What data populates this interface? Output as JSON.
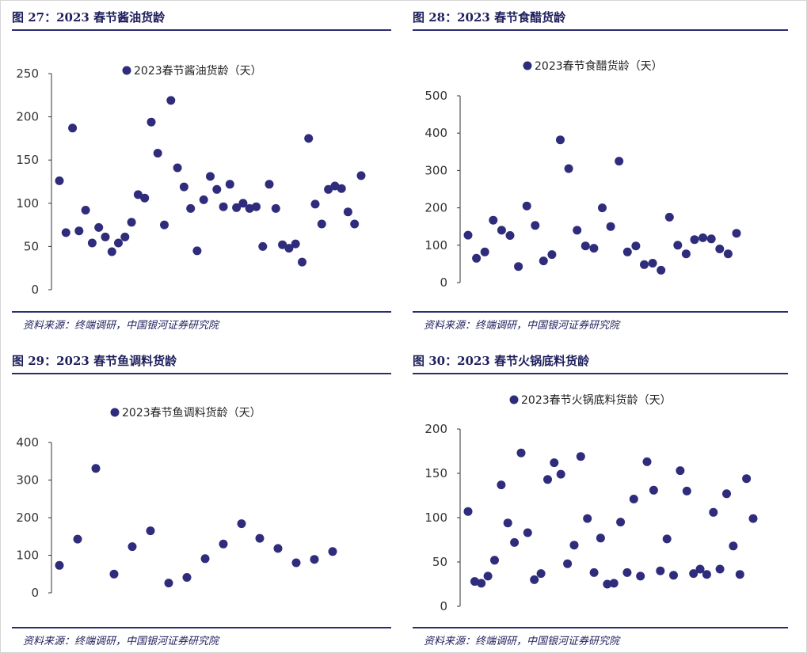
{
  "colors": {
    "marker": "#2f2c7c",
    "rule": "#2b2c71",
    "text": "#1e1f5c",
    "axis": "#333333"
  },
  "panels": [
    {
      "title": "图 27：2023 春节酱油货龄",
      "source": "资料来源：终端调研，中国银河证券研究院"
    },
    {
      "title": "图 28：2023 春节食醋货龄",
      "source": "资料来源：终端调研，中国银河证券研究院"
    },
    {
      "title": "图 29：2023 春节鱼调料货龄",
      "source": "资料来源：终端调研，中国银河证券研究院"
    },
    {
      "title": "图 30：2023 春节火锅底料货龄",
      "source": "资料来源：终端调研，中国银河证券研究院"
    }
  ],
  "chart_data": [
    {
      "type": "scatter",
      "series": [
        {
          "name": "2023春节酱油货龄（天）",
          "values": [
            126,
            66,
            187,
            68,
            92,
            54,
            72,
            61,
            44,
            54,
            61,
            78,
            110,
            106,
            194,
            158,
            75,
            219,
            141,
            119,
            94,
            45,
            104,
            131,
            116,
            96,
            122,
            95,
            100,
            94,
            96,
            50,
            122,
            94,
            52,
            48,
            53,
            32,
            175,
            99,
            76,
            116,
            120,
            117,
            90,
            76,
            132
          ]
        }
      ],
      "ylim": [
        0,
        250
      ],
      "yticks": [
        0,
        50,
        100,
        150,
        200,
        250
      ],
      "legend": "top-center",
      "grid": false
    },
    {
      "type": "scatter",
      "series": [
        {
          "name": "2023春节食醋货龄（天）",
          "values": [
            127,
            65,
            82,
            167,
            140,
            126,
            43,
            205,
            153,
            58,
            75,
            382,
            305,
            140,
            98,
            92,
            200,
            150,
            325,
            82,
            98,
            48,
            52,
            33,
            175,
            100,
            77,
            115,
            120,
            117,
            90,
            77,
            132
          ]
        }
      ],
      "ylim": [
        0,
        500
      ],
      "yticks": [
        0,
        100,
        200,
        300,
        400,
        500
      ],
      "legend": "top-center",
      "grid": false
    },
    {
      "type": "scatter",
      "series": [
        {
          "name": "2023春节鱼调料货龄（天）",
          "values": [
            73,
            143,
            331,
            50,
            123,
            165,
            26,
            41,
            91,
            130,
            184,
            145,
            118,
            80,
            89,
            110
          ]
        }
      ],
      "ylim": [
        0,
        400
      ],
      "yticks": [
        0,
        100,
        200,
        300,
        400
      ],
      "legend": "top-center",
      "grid": false
    },
    {
      "type": "scatter",
      "series": [
        {
          "name": "2023春节火锅底料货龄（天）",
          "values": [
            107,
            28,
            26,
            34,
            52,
            137,
            94,
            72,
            173,
            83,
            30,
            37,
            143,
            162,
            149,
            48,
            69,
            169,
            99,
            38,
            77,
            25,
            26,
            95,
            38,
            121,
            34,
            163,
            131,
            40,
            76,
            35,
            153,
            130,
            37,
            42,
            36,
            106,
            42,
            127,
            68,
            36,
            144,
            99
          ]
        }
      ],
      "ylim": [
        0,
        200
      ],
      "yticks": [
        0,
        50,
        100,
        150,
        200
      ],
      "legend": "top-center",
      "grid": false
    }
  ]
}
